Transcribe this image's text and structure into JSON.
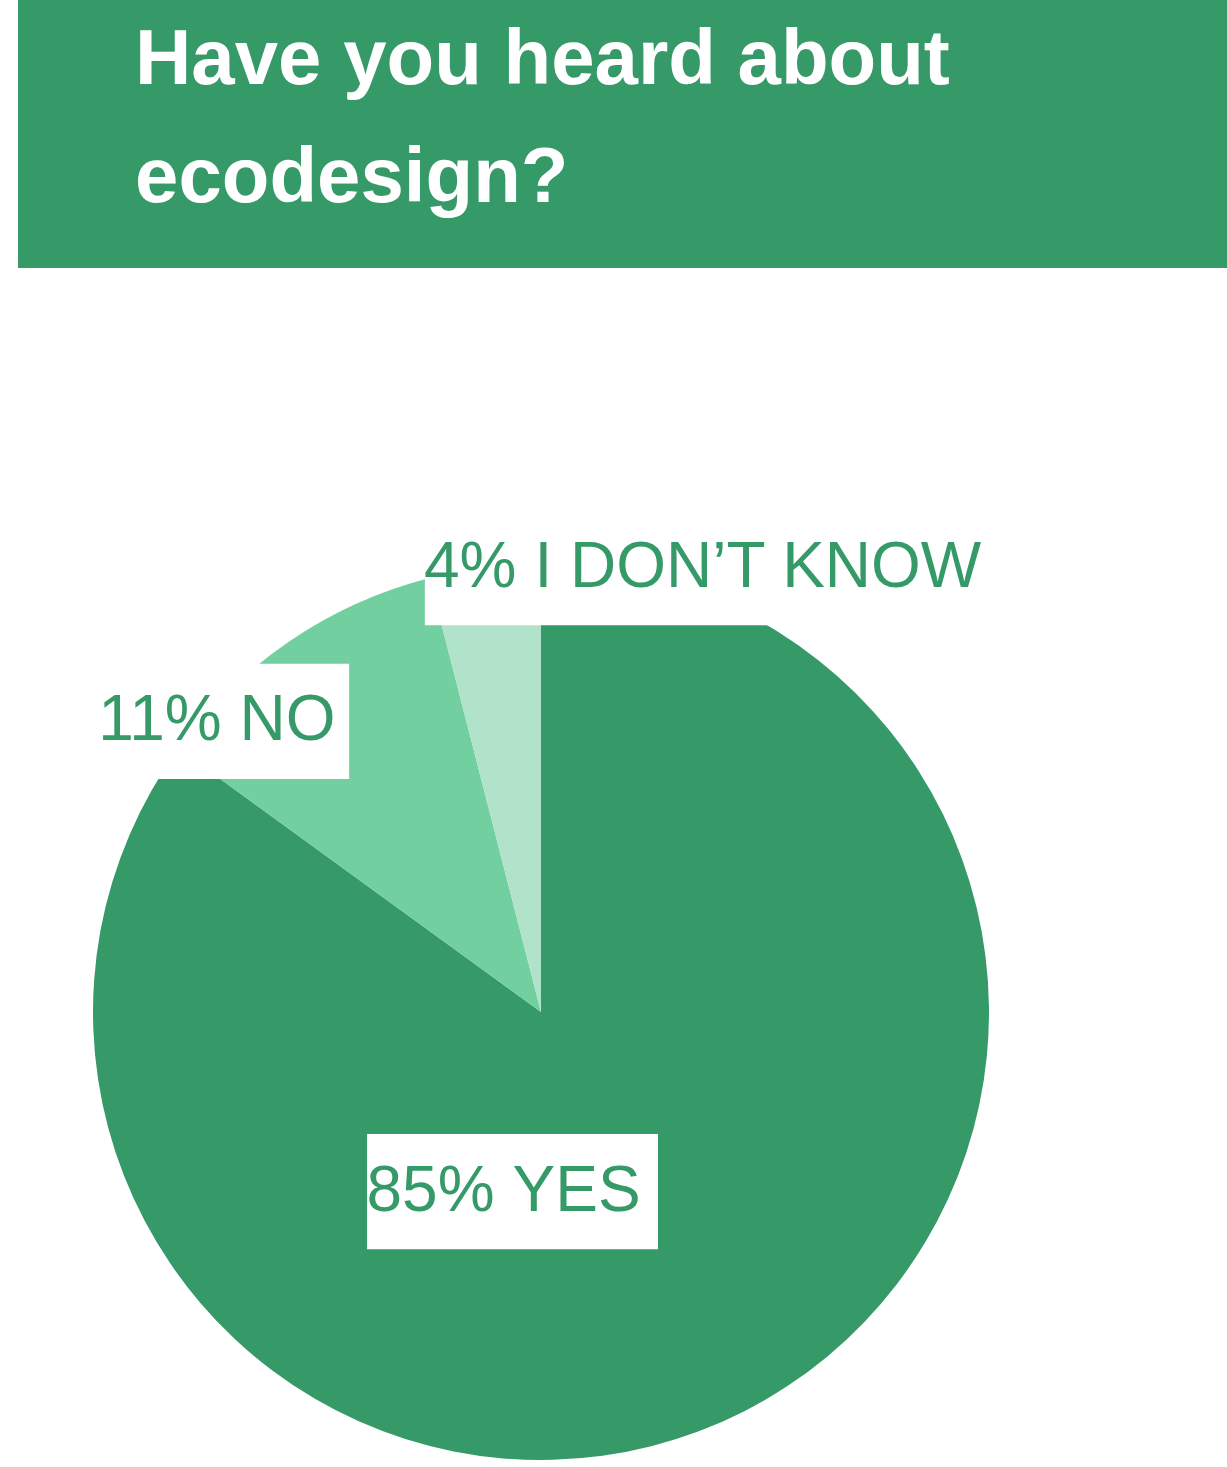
{
  "chart_data": {
    "type": "pie",
    "title": "Have you heard about\necodesign?",
    "categories": [
      "YES",
      "NO",
      "I DON’T KNOW"
    ],
    "values": [
      85,
      11,
      4
    ],
    "colors": [
      "#359a68",
      "#72cfa0",
      "#b1e3cb"
    ],
    "value_labels": [
      "85%",
      "11%",
      "4%"
    ]
  }
}
